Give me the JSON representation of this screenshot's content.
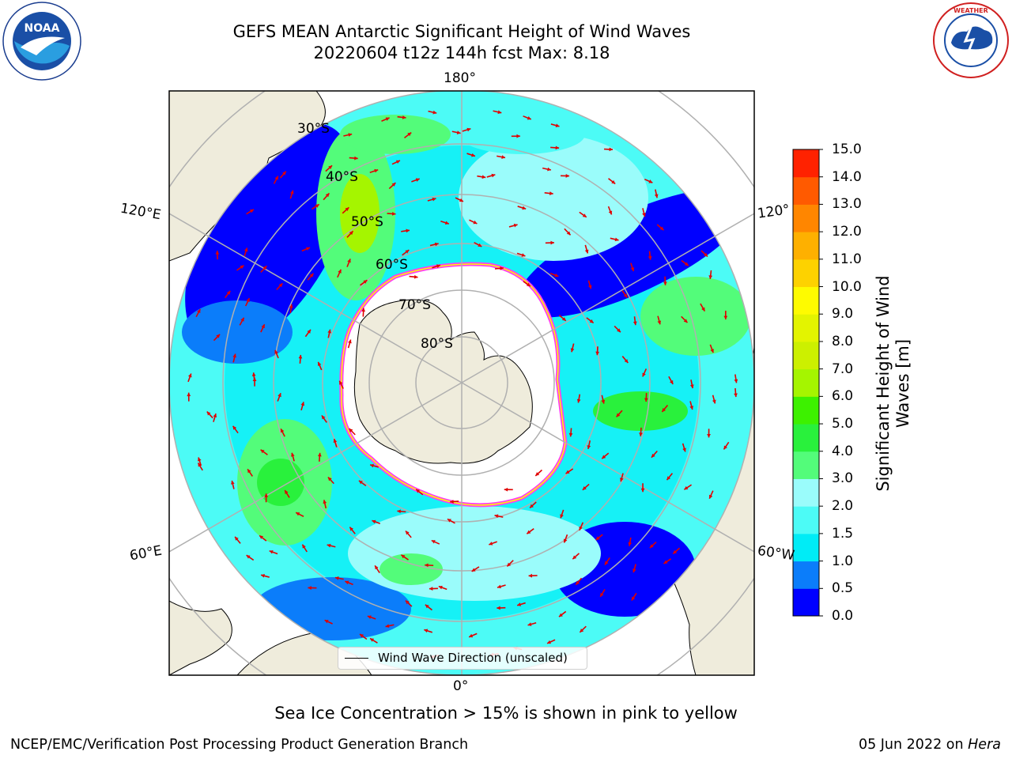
{
  "title": {
    "line1": "GEFS MEAN Antarctic Significant Height of Wind Waves",
    "line2": "20220604 t12z 144h fcst   Max: 8.18"
  },
  "logos": {
    "noaa": "NOAA",
    "nws": "NATIONAL WEATHER SERVICE"
  },
  "map": {
    "projection": "south-polar-stereographic",
    "lon_labels": {
      "top": "180°",
      "bottom": "0°",
      "upper_left": "120°E",
      "lower_left": "60°E",
      "upper_right": "120°",
      "lower_right": "60°W"
    },
    "lat_labels": [
      "30°S",
      "40°S",
      "50°S",
      "60°S",
      "70°S",
      "80°S"
    ],
    "legend_label": "Wind Wave Direction (unscaled)",
    "colors": {
      "land": "#efecdc",
      "sea_ice": "#ffffff",
      "ice_edge": "#ff3ff0",
      "arrow": "#e00000",
      "grid": "#b0b0b0"
    }
  },
  "colorbar": {
    "label": "Significant Height of Wind Waves [m]",
    "ticks": [
      "0.0",
      "0.5",
      "1.0",
      "1.5",
      "2.0",
      "3.0",
      "4.0",
      "5.0",
      "6.0",
      "7.0",
      "8.0",
      "9.0",
      "10.0",
      "11.0",
      "12.0",
      "13.0",
      "14.0",
      "15.0"
    ],
    "colors": [
      "#0000ff",
      "#0b7dfa",
      "#00ecf6",
      "#4cfbf6",
      "#9afcfb",
      "#53fc7a",
      "#29f13c",
      "#3df100",
      "#a5f500",
      "#ccf000",
      "#e3f400",
      "#fefb00",
      "#fdd200",
      "#feb000",
      "#ff8600",
      "#ff5a00",
      "#ff2200"
    ]
  },
  "note": "Sea Ice Concentration > 15% is shown in pink to yellow",
  "footer": {
    "left": "NCEP/EMC/Verification Post Processing Product Generation Branch",
    "date": "05 Jun 2022 on ",
    "host": "Hera"
  }
}
